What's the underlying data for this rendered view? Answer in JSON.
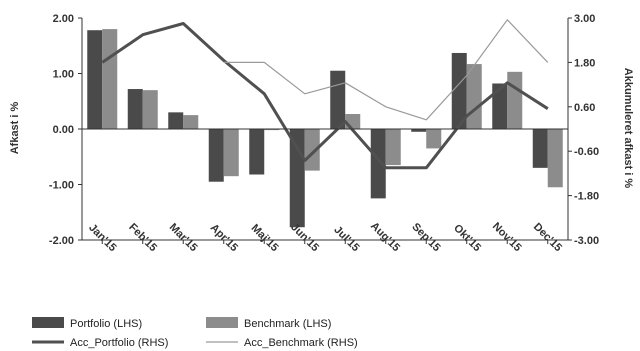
{
  "chart_data": {
    "type": "bar",
    "categories": [
      "Jan'15",
      "Feb'15",
      "Mar'15",
      "Apr'15",
      "Maj'15",
      "Jun'15",
      "Jul'15",
      "Aug'15",
      "Sep'15",
      "Okt'15",
      "Nov'15",
      "Dec'15"
    ],
    "series": [
      {
        "name": "Portfolio (LHS)",
        "kind": "bar",
        "axis": "left",
        "color": "#4a4a4a",
        "values": [
          1.78,
          0.72,
          0.3,
          -0.95,
          -0.82,
          -1.77,
          1.05,
          -1.25,
          -0.05,
          1.37,
          0.82,
          -0.7
        ]
      },
      {
        "name": "Benchmark (LHS)",
        "kind": "bar",
        "axis": "left",
        "color": "#8c8c8c",
        "values": [
          1.8,
          0.7,
          0.25,
          -0.85,
          -0.02,
          -0.75,
          0.27,
          -0.65,
          -0.35,
          1.17,
          1.03,
          -1.05
        ]
      },
      {
        "name": "Acc_Portfolio (RHS)",
        "kind": "line",
        "axis": "right",
        "color": "#505050",
        "values": [
          1.8,
          2.55,
          2.85,
          1.85,
          0.95,
          -0.85,
          0.2,
          -1.05,
          -1.05,
          0.35,
          1.25,
          0.55
        ]
      },
      {
        "name": "Acc_Benchmark (RHS)",
        "kind": "line",
        "axis": "right",
        "color": "#9a9a9a",
        "values": [
          1.8,
          null,
          null,
          1.8,
          1.8,
          0.95,
          1.25,
          0.6,
          0.25,
          1.45,
          2.95,
          1.8
        ]
      }
    ],
    "y_left": {
      "label": "Afkast i %",
      "ticks": [
        "2.00",
        "1.00",
        "0.00",
        "-1.00",
        "-2.00"
      ],
      "lim": [
        -2,
        2
      ]
    },
    "y_right": {
      "label": "Akkumuleret afkast i %",
      "ticks": [
        "3.00",
        "1.80",
        "0.60",
        "-0.60",
        "-1.80",
        "-3.00"
      ],
      "lim": [
        -3,
        3
      ]
    },
    "legend_position": "bottom-left",
    "grid": false
  }
}
